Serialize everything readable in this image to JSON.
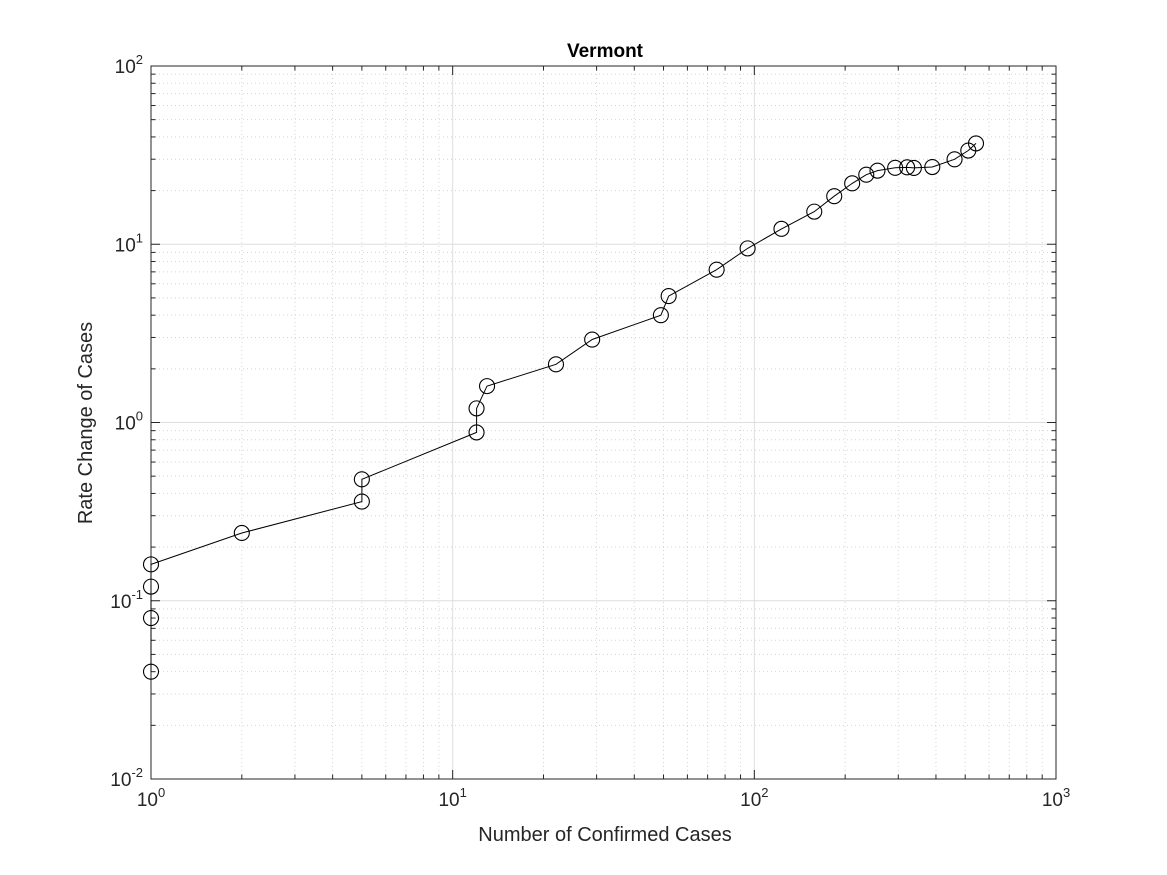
{
  "chart_data": {
    "type": "line",
    "title": "Vermont",
    "xlabel": "Number of Confirmed Cases",
    "ylabel": "Rate Change of Cases",
    "xscale": "log",
    "yscale": "log",
    "xlim": [
      1,
      1000
    ],
    "ylim": [
      0.01,
      100
    ],
    "grid": true,
    "minor_grid": true,
    "legend": "none",
    "x_ticks": [
      {
        "value": 1,
        "base": "10",
        "exp": "0"
      },
      {
        "value": 10,
        "base": "10",
        "exp": "1"
      },
      {
        "value": 100,
        "base": "10",
        "exp": "2"
      },
      {
        "value": 1000,
        "base": "10",
        "exp": "3"
      }
    ],
    "y_ticks": [
      {
        "value": 0.01,
        "base": "10",
        "exp": "-2"
      },
      {
        "value": 0.1,
        "base": "10",
        "exp": "-1"
      },
      {
        "value": 1,
        "base": "10",
        "exp": "0"
      },
      {
        "value": 10,
        "base": "10",
        "exp": "1"
      },
      {
        "value": 100,
        "base": "10",
        "exp": "2"
      }
    ],
    "marker": "circle",
    "line_color": "#000000",
    "series": [
      {
        "x": [
          1,
          1,
          1,
          1,
          2,
          5,
          5,
          12,
          12,
          13,
          22,
          29,
          49,
          52,
          75,
          95,
          123,
          158,
          184,
          211,
          235,
          256,
          293,
          321,
          338,
          389,
          461,
          512,
          543
        ],
        "y": [
          0.04,
          0.08,
          0.12,
          0.16,
          0.24,
          0.36,
          0.48,
          0.88,
          1.2,
          1.6,
          2.12,
          2.92,
          4.0,
          5.12,
          7.2,
          9.48,
          12.2,
          15.24,
          18.6,
          21.96,
          24.56,
          25.88,
          26.84,
          27.0,
          26.8,
          27.12,
          29.96,
          33.56,
          36.8
        ]
      }
    ]
  }
}
